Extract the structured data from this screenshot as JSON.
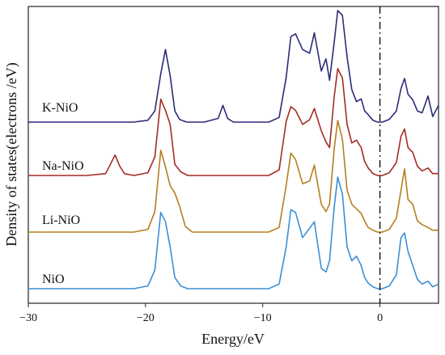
{
  "chart_data": {
    "type": "line",
    "title": "",
    "xlabel": "Energy/eV",
    "ylabel": "Density of states(electrons /eV)",
    "xlim": [
      -30,
      5
    ],
    "xticks": [
      -30,
      -20,
      -10,
      0
    ],
    "xtick_labels": [
      "−30",
      "−20",
      "−10",
      "0"
    ],
    "fermi_level": 0,
    "grid": false,
    "legend": "inline labels at left",
    "series": [
      {
        "name": "K-NiO",
        "color": "#2c2c78",
        "x": [
          -30,
          -28,
          -24,
          -21,
          -19.8,
          -19.2,
          -18.7,
          -18.3,
          -17.9,
          -17.5,
          -17.1,
          -16.5,
          -15,
          -13.8,
          -13.4,
          -13.0,
          -12.5,
          -11,
          -9.5,
          -8.6,
          -8.0,
          -7.6,
          -7.2,
          -6.6,
          -6.0,
          -5.6,
          -5.0,
          -4.6,
          -4.3,
          -3.9,
          -3.6,
          -3.2,
          -2.8,
          -2.4,
          -2.0,
          -1.6,
          -1.3,
          -1.0,
          -0.6,
          -0.2,
          0.2,
          0.8,
          1.4,
          1.8,
          2.1,
          2.4,
          2.8,
          3.2,
          3.6,
          4.1,
          4.5,
          5
        ],
        "y": [
          0,
          0,
          0,
          0,
          0.02,
          0.12,
          0.52,
          0.78,
          0.5,
          0.12,
          0.03,
          0,
          0,
          0.04,
          0.18,
          0.04,
          0,
          0,
          0,
          0.05,
          0.48,
          0.92,
          0.95,
          0.78,
          0.74,
          0.96,
          0.55,
          0.68,
          0.45,
          0.86,
          1.2,
          1.15,
          0.7,
          0.35,
          0.22,
          0.25,
          0.12,
          0.08,
          0.02,
          0,
          0,
          0.03,
          0.12,
          0.36,
          0.47,
          0.3,
          0.24,
          0.12,
          0.1,
          0.28,
          0.06,
          0.18
        ]
      },
      {
        "name": "Na-NiO",
        "color": "#a32c22",
        "x": [
          -30,
          -25,
          -23.4,
          -23.0,
          -22.6,
          -22.2,
          -21.8,
          -21,
          -19.8,
          -19.2,
          -18.7,
          -18.3,
          -17.9,
          -17.5,
          -17.0,
          -16.4,
          -15,
          -12,
          -9.5,
          -8.6,
          -8.0,
          -7.6,
          -7.2,
          -6.6,
          -6.0,
          -5.6,
          -5.0,
          -4.6,
          -4.3,
          -3.9,
          -3.6,
          -3.2,
          -2.8,
          -2.4,
          -2.0,
          -1.6,
          -1.3,
          -1.0,
          -0.6,
          -0.2,
          0.2,
          0.8,
          1.4,
          1.8,
          2.1,
          2.4,
          2.8,
          3.2,
          3.6,
          4.1,
          4.5,
          5
        ],
        "y": [
          0,
          0,
          0.02,
          0.12,
          0.22,
          0.1,
          0.02,
          0,
          0.03,
          0.2,
          0.82,
          0.7,
          0.55,
          0.12,
          0.04,
          0,
          0,
          0,
          0,
          0.06,
          0.58,
          0.74,
          0.7,
          0.55,
          0.6,
          0.72,
          0.48,
          0.36,
          0.3,
          0.85,
          1.15,
          1.05,
          0.55,
          0.35,
          0.38,
          0.3,
          0.15,
          0.08,
          0.02,
          0,
          0,
          0.03,
          0.14,
          0.42,
          0.5,
          0.3,
          0.25,
          0.1,
          0.05,
          0.08,
          0.02,
          0.02
        ]
      },
      {
        "name": "Li-NiO",
        "color": "#b57f1f",
        "x": [
          -30,
          -25,
          -21,
          -19.8,
          -19.2,
          -18.7,
          -18.3,
          -17.9,
          -17.5,
          -17.1,
          -16.6,
          -16,
          -15,
          -12,
          -9.5,
          -8.6,
          -8.0,
          -7.6,
          -7.2,
          -6.6,
          -6.0,
          -5.6,
          -5.0,
          -4.6,
          -4.3,
          -3.9,
          -3.6,
          -3.2,
          -2.8,
          -2.4,
          -2.0,
          -1.6,
          -1.3,
          -1.0,
          -0.6,
          -0.2,
          0.2,
          0.8,
          1.4,
          1.8,
          2.1,
          2.4,
          2.8,
          3.2,
          3.6,
          4.1,
          4.5,
          5
        ],
        "y": [
          0,
          0,
          0,
          0.03,
          0.22,
          0.88,
          0.7,
          0.5,
          0.42,
          0.28,
          0.06,
          0,
          0,
          0,
          0,
          0.05,
          0.5,
          0.85,
          0.78,
          0.52,
          0.55,
          0.72,
          0.3,
          0.22,
          0.3,
          0.9,
          1.2,
          1.0,
          0.45,
          0.3,
          0.25,
          0.2,
          0.12,
          0.05,
          0.02,
          0,
          0,
          0.03,
          0.15,
          0.45,
          0.68,
          0.35,
          0.3,
          0.12,
          0.08,
          0.05,
          0.02,
          0.02
        ]
      },
      {
        "name": "NiO",
        "color": "#3a8fd6",
        "x": [
          -30,
          -25,
          -21,
          -19.8,
          -19.2,
          -18.7,
          -18.3,
          -17.9,
          -17.5,
          -17.0,
          -16.4,
          -15,
          -12,
          -9.5,
          -8.6,
          -8.0,
          -7.6,
          -7.2,
          -6.6,
          -6.0,
          -5.6,
          -5.0,
          -4.6,
          -4.3,
          -3.9,
          -3.6,
          -3.2,
          -2.8,
          -2.4,
          -2.0,
          -1.6,
          -1.3,
          -1.0,
          -0.6,
          -0.2,
          0.2,
          0.8,
          1.4,
          1.8,
          2.1,
          2.4,
          2.8,
          3.2,
          3.6,
          4.1,
          4.5,
          5
        ],
        "y": [
          0,
          0,
          0,
          0.03,
          0.2,
          0.82,
          0.72,
          0.45,
          0.12,
          0.03,
          0,
          0,
          0,
          0,
          0.05,
          0.45,
          0.85,
          0.82,
          0.55,
          0.65,
          0.72,
          0.22,
          0.18,
          0.3,
          0.88,
          1.2,
          1.02,
          0.45,
          0.3,
          0.35,
          0.25,
          0.12,
          0.06,
          0.02,
          0,
          0,
          0.03,
          0.15,
          0.55,
          0.6,
          0.4,
          0.25,
          0.1,
          0.05,
          0.08,
          0.02,
          0.05
        ]
      }
    ]
  }
}
